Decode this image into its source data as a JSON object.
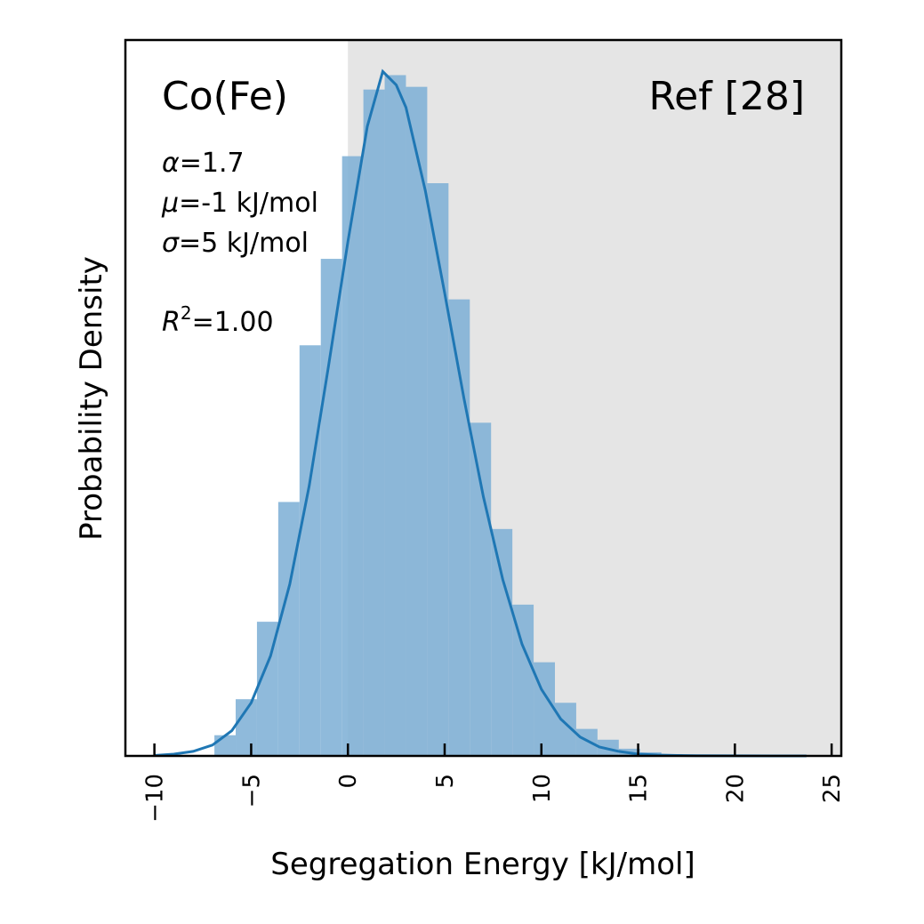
{
  "chart_data": {
    "type": "bar",
    "title": "Co(Fe)",
    "annotation_right": "Ref [28]",
    "xlabel": "Segregation Energy [kJ/mol]",
    "ylabel": "Probability Density",
    "xlim": [
      -11.5,
      25.5
    ],
    "ylim": [
      0,
      0.0795
    ],
    "xticks": [
      -10,
      -5,
      0,
      5,
      10,
      15,
      20,
      25
    ],
    "xtick_labels": [
      "−10",
      "−5",
      "0",
      "5",
      "10",
      "15",
      "20",
      "25"
    ],
    "yticks_visible": false,
    "grid": false,
    "shaded_region": {
      "x_from": 0,
      "x_to": 25.5,
      "color": "#e5e5e5"
    },
    "params": {
      "alpha": {
        "symbol": "α",
        "text": "=1.7"
      },
      "mu": {
        "symbol": "μ",
        "text": "=-1 kJ/mol"
      },
      "sigma": {
        "symbol": "σ",
        "text": "=5 kJ/mol"
      },
      "r2": {
        "symbol": "R",
        "sup": "2",
        "text": "=1.00"
      }
    },
    "histogram": {
      "color": "#7fb0d6",
      "bins": [
        {
          "x0": -6.9,
          "x1": -5.8,
          "value": 0.0023
        },
        {
          "x0": -5.8,
          "x1": -4.7,
          "value": 0.0063
        },
        {
          "x0": -4.7,
          "x1": -3.6,
          "value": 0.0149
        },
        {
          "x0": -3.6,
          "x1": -2.5,
          "value": 0.0282
        },
        {
          "x0": -2.5,
          "x1": -1.4,
          "value": 0.0456
        },
        {
          "x0": -1.4,
          "x1": -0.3,
          "value": 0.0552
        },
        {
          "x0": -0.3,
          "x1": 0.8,
          "value": 0.0666
        },
        {
          "x0": 0.8,
          "x1": 1.9,
          "value": 0.074
        },
        {
          "x0": 1.9,
          "x1": 3.0,
          "value": 0.0756
        },
        {
          "x0": 3.0,
          "x1": 4.1,
          "value": 0.0743
        },
        {
          "x0": 4.1,
          "x1": 5.2,
          "value": 0.0636
        },
        {
          "x0": 5.2,
          "x1": 6.3,
          "value": 0.0507
        },
        {
          "x0": 6.3,
          "x1": 7.4,
          "value": 0.037
        },
        {
          "x0": 7.4,
          "x1": 8.5,
          "value": 0.0252
        },
        {
          "x0": 8.5,
          "x1": 9.6,
          "value": 0.0168
        },
        {
          "x0": 9.6,
          "x1": 10.7,
          "value": 0.0104
        },
        {
          "x0": 10.7,
          "x1": 11.8,
          "value": 0.0059
        },
        {
          "x0": 11.8,
          "x1": 12.9,
          "value": 0.003
        },
        {
          "x0": 12.9,
          "x1": 14.0,
          "value": 0.0018
        },
        {
          "x0": 14.0,
          "x1": 15.1,
          "value": 0.0008
        },
        {
          "x0": 15.1,
          "x1": 16.2,
          "value": 0.0004
        },
        {
          "x0": 16.2,
          "x1": 17.3,
          "value": 0.0002
        }
      ]
    },
    "fit_line": {
      "color": "#1f77b4",
      "x": [
        -10,
        -9,
        -8,
        -7,
        -6,
        -5,
        -4,
        -3,
        -2,
        -1,
        0,
        1,
        1.8,
        2.5,
        3,
        4,
        5,
        6,
        7,
        8,
        9,
        10,
        11,
        12,
        13,
        14,
        15,
        16,
        17,
        18,
        20,
        22,
        23.7
      ],
      "y": [
        5e-05,
        0.0002,
        0.0005,
        0.0012,
        0.0028,
        0.0059,
        0.0111,
        0.0191,
        0.03,
        0.0433,
        0.0571,
        0.0699,
        0.076,
        0.0745,
        0.072,
        0.0628,
        0.0514,
        0.0397,
        0.0288,
        0.0196,
        0.0124,
        0.0074,
        0.0041,
        0.0021,
        0.001,
        0.0005,
        0.0002,
        0.0001,
        5e-05,
        2e-05,
        5e-06,
        1e-06,
        0.0
      ]
    }
  }
}
